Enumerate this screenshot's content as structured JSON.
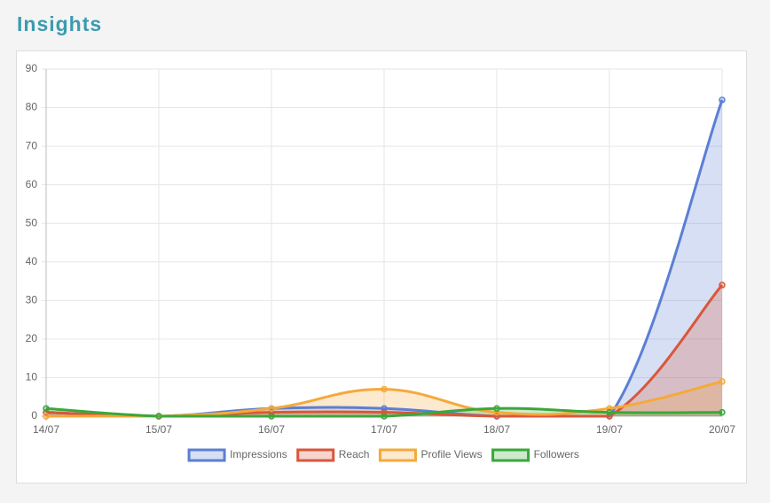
{
  "header": {
    "title": "Insights"
  },
  "chart_data": {
    "type": "line",
    "categories": [
      "14/07",
      "15/07",
      "16/07",
      "17/07",
      "18/07",
      "19/07",
      "20/07"
    ],
    "series": [
      {
        "name": "Impressions",
        "color": "#5b7fd4",
        "values": [
          1,
          0,
          2,
          2,
          0,
          0,
          82
        ]
      },
      {
        "name": "Reach",
        "color": "#d9573b",
        "values": [
          1,
          0,
          1,
          1,
          0,
          0,
          34
        ]
      },
      {
        "name": "Profile Views",
        "color": "#f5a93b",
        "values": [
          0,
          0,
          2,
          7,
          1,
          2,
          9
        ]
      },
      {
        "name": "Followers",
        "color": "#3aa83a",
        "values": [
          2,
          0,
          0,
          0,
          2,
          1,
          1
        ]
      }
    ],
    "ylim": [
      0,
      90
    ],
    "yticks": [
      0,
      10,
      20,
      30,
      40,
      50,
      60,
      70,
      80,
      90
    ],
    "grid": true,
    "fill": true,
    "legend": "bottom"
  }
}
